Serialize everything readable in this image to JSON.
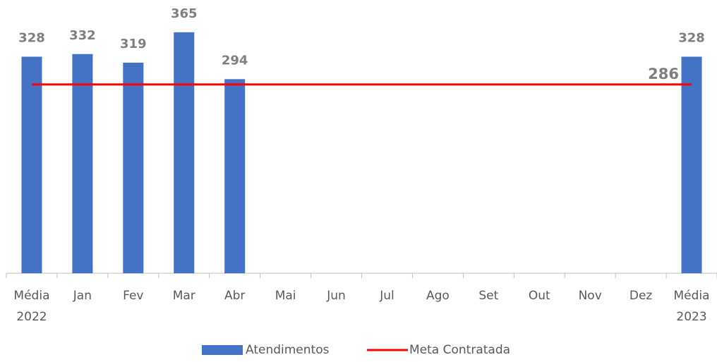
{
  "chart_data": {
    "type": "bar",
    "categories": [
      "Média 2022",
      "Jan",
      "Fev",
      "Mar",
      "Abr",
      "Mai",
      "Jun",
      "Jul",
      "Ago",
      "Set",
      "Out",
      "Nov",
      "Dez",
      "Média 2023"
    ],
    "series": [
      {
        "name": "Atendimentos",
        "type": "bar",
        "color": "#4472c4",
        "values": [
          328,
          332,
          319,
          365,
          294,
          null,
          null,
          null,
          null,
          null,
          null,
          null,
          null,
          328
        ]
      },
      {
        "name": "Meta Contratada",
        "type": "line",
        "color": "#ff0000",
        "values": [
          286,
          286,
          286,
          286,
          286,
          286,
          286,
          286,
          286,
          286,
          286,
          286,
          286,
          286
        ]
      }
    ],
    "ylim": [
      0,
      400
    ],
    "legend": "bottom"
  }
}
